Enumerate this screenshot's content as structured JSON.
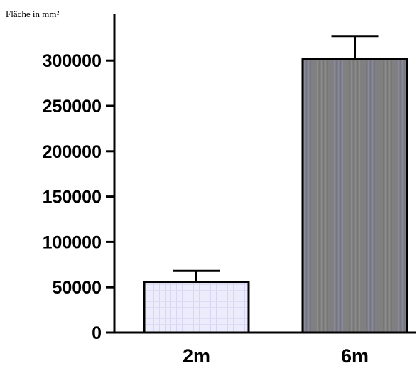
{
  "chart_data": {
    "type": "bar",
    "ylabel": "Fläche in mm²",
    "categories": [
      "2m",
      "6m"
    ],
    "values": [
      56000,
      302000
    ],
    "error_upper": [
      68000,
      327000
    ],
    "ylim": [
      0,
      330000
    ],
    "yticks": [
      0,
      50000,
      100000,
      150000,
      200000,
      250000,
      300000
    ],
    "ytick_labels": [
      "0",
      "50000",
      "100000",
      "150000",
      "200000",
      "250000",
      "300000"
    ],
    "bar_colors": [
      "#e8e8fb",
      "#808080"
    ],
    "grid": false,
    "legend": "none"
  }
}
